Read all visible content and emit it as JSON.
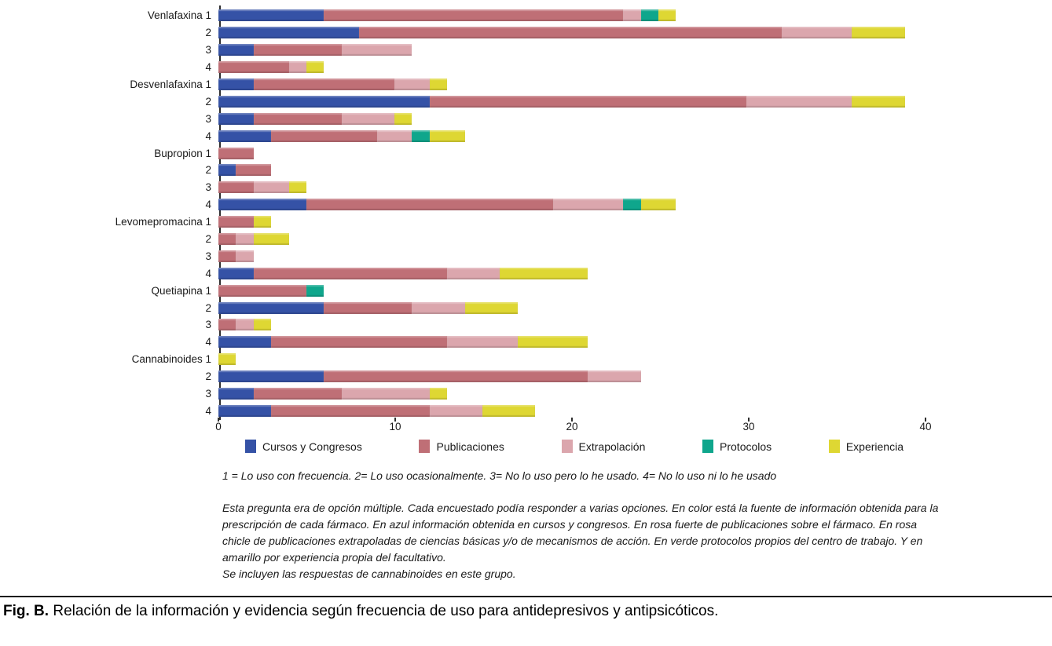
{
  "chart_data": {
    "type": "bar",
    "orientation": "horizontal",
    "stacked": true,
    "xlim": [
      0,
      40
    ],
    "x_ticks": [
      0,
      10,
      20,
      30,
      40
    ],
    "grid": false,
    "legend_position": "bottom",
    "series": [
      {
        "name": "Cursos y Congresos",
        "slug": "cursos-y-congresos",
        "color": "#3552a6"
      },
      {
        "name": "Publicaciones",
        "slug": "publicaciones",
        "color": "#bf6f76"
      },
      {
        "name": "Extrapolación",
        "slug": "extrapolacion",
        "color": "#dba6ad"
      },
      {
        "name": "Protocolos",
        "slug": "protocolos",
        "color": "#0fa68c"
      },
      {
        "name": "Experiencia",
        "slug": "experiencia",
        "color": "#ded733"
      }
    ],
    "rows": [
      {
        "label": "Venlafaxina 1",
        "values": [
          6,
          17,
          1,
          1,
          1
        ]
      },
      {
        "label": "2",
        "values": [
          8,
          24,
          4,
          0,
          3
        ]
      },
      {
        "label": "3",
        "values": [
          2,
          5,
          4,
          0,
          0
        ]
      },
      {
        "label": "4",
        "values": [
          0,
          4,
          1,
          0,
          1
        ]
      },
      {
        "label": "Desvenlafaxina 1",
        "values": [
          2,
          8,
          2,
          0,
          1
        ]
      },
      {
        "label": "2",
        "values": [
          12,
          18,
          6,
          0,
          3
        ]
      },
      {
        "label": "3",
        "values": [
          2,
          5,
          3,
          0,
          1
        ]
      },
      {
        "label": "4",
        "values": [
          3,
          6,
          2,
          1,
          2
        ]
      },
      {
        "label": "Bupropion 1",
        "values": [
          0,
          2,
          0,
          0,
          0
        ]
      },
      {
        "label": "2",
        "values": [
          1,
          2,
          0,
          0,
          0
        ]
      },
      {
        "label": "3",
        "values": [
          0,
          2,
          2,
          0,
          1
        ]
      },
      {
        "label": "4",
        "values": [
          5,
          14,
          4,
          1,
          2
        ]
      },
      {
        "label": "Levomepromacina 1",
        "values": [
          0,
          2,
          0,
          0,
          1
        ]
      },
      {
        "label": "2",
        "values": [
          0,
          1,
          1,
          0,
          2
        ]
      },
      {
        "label": "3",
        "values": [
          0,
          1,
          1,
          0,
          0
        ]
      },
      {
        "label": "4",
        "values": [
          2,
          11,
          3,
          0,
          5
        ]
      },
      {
        "label": "Quetiapina 1",
        "values": [
          0,
          5,
          0,
          1,
          0
        ]
      },
      {
        "label": "2",
        "values": [
          6,
          5,
          3,
          0,
          3
        ]
      },
      {
        "label": "3",
        "values": [
          0,
          1,
          1,
          0,
          1
        ]
      },
      {
        "label": "4",
        "values": [
          3,
          10,
          4,
          0,
          4
        ]
      },
      {
        "label": "Cannabinoides 1",
        "values": [
          0,
          0,
          0,
          0,
          1
        ]
      },
      {
        "label": "2",
        "values": [
          6,
          15,
          3,
          0,
          0
        ]
      },
      {
        "label": "3",
        "values": [
          2,
          5,
          5,
          0,
          1
        ]
      },
      {
        "label": "4",
        "values": [
          3,
          9,
          3,
          0,
          3
        ]
      }
    ]
  },
  "notes": {
    "scale": "1 = Lo uso con frecuencia. 2= Lo uso ocasionalmente. 3= No lo uso pero lo he usado. 4= No lo uso ni lo he usado",
    "description": "Esta pregunta era de opción múltiple. Cada encuestado podía responder a varias opciones. En color está la fuente de información obtenida para la prescripción de cada fármaco. En azul información obtenida en cursos y congresos. En rosa fuerte de publicaciones sobre el fármaco. En rosa chicle de publicaciones extrapoladas de ciencias básicas y/o de mecanismos de acción. En verde protocolos propios del centro de trabajo. Y en amarillo por experiencia propia del facultativo.",
    "description2": "Se incluyen las respuestas de cannabinoides en este grupo."
  },
  "caption": {
    "prefix": "Fig. B.",
    "text": " Relación de la información y evidencia según frecuencia de uso para antidepresivos y antipsicóticos."
  }
}
